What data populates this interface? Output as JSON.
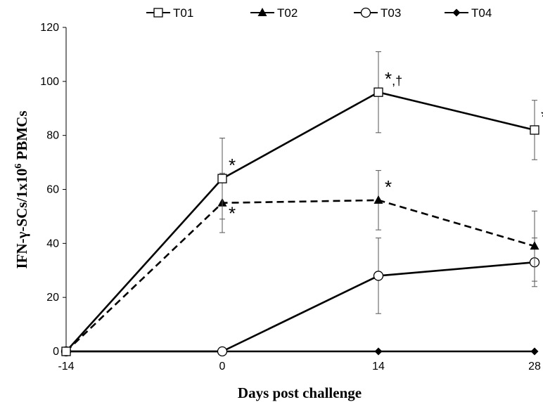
{
  "chart_data": {
    "type": "line",
    "title": "",
    "xlabel": "Days post challenge",
    "ylabel_main": "IFN-γ-SCs/1x10",
    "ylabel_sup": "6",
    "ylabel_tail": " PBMCs",
    "x": [
      -14,
      0,
      14,
      28
    ],
    "x_tick_labels": [
      "-14",
      "0",
      "14",
      "28"
    ],
    "ylim": [
      0,
      120
    ],
    "y_ticks": [
      0,
      20,
      40,
      60,
      80,
      100,
      120
    ],
    "grid": false,
    "legend_position": "top",
    "series": [
      {
        "name": "T01",
        "marker": "square-open",
        "dash": "solid",
        "values": [
          0,
          64,
          96,
          82
        ],
        "err": [
          0,
          15,
          15,
          11
        ]
      },
      {
        "name": "T02",
        "marker": "triangle-filled",
        "dash": "dashed",
        "values": [
          0,
          55,
          56,
          39
        ],
        "err": [
          0,
          11,
          11,
          13
        ]
      },
      {
        "name": "T03",
        "marker": "circle-open",
        "dash": "solid",
        "values": [
          0,
          0,
          28,
          33
        ],
        "err": [
          0,
          0,
          14,
          9
        ]
      },
      {
        "name": "T04",
        "marker": "diamond-filled",
        "dash": "solid",
        "values": [
          0,
          0,
          0,
          0
        ],
        "err": [
          0,
          0,
          0,
          0
        ]
      }
    ],
    "annotations": [
      {
        "text": "*",
        "x": 0,
        "y": 64,
        "series": "T01"
      },
      {
        "text": "*",
        "x": 0,
        "y": 55,
        "series": "T02"
      },
      {
        "text": "*,†",
        "x": 14,
        "y": 96,
        "series": "T01"
      },
      {
        "text": "*",
        "x": 14,
        "y": 56,
        "series": "T02"
      },
      {
        "text": "*,†",
        "x": 28,
        "y": 82,
        "series": "T01"
      }
    ]
  }
}
